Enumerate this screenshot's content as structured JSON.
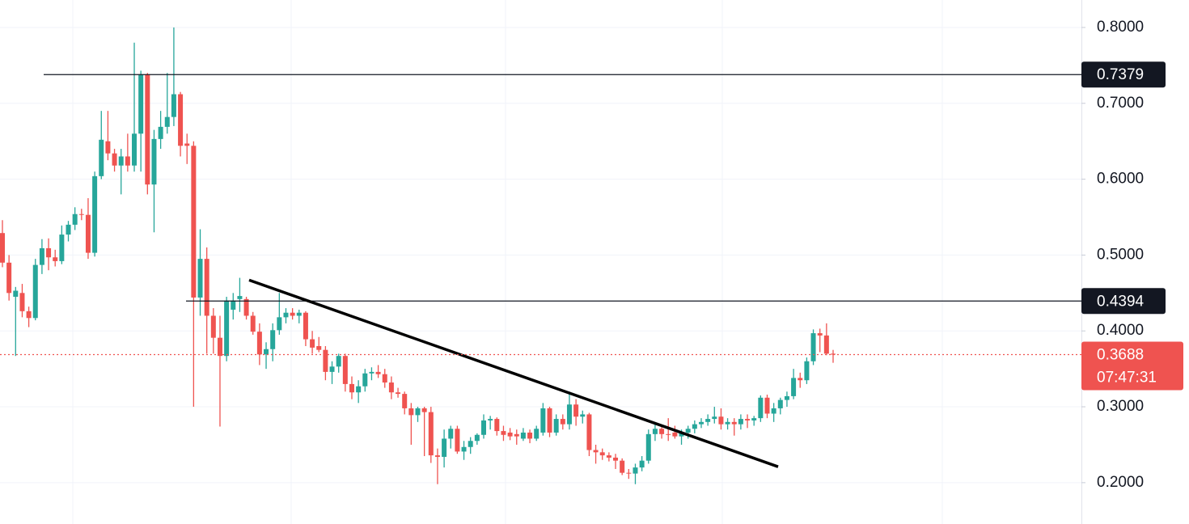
{
  "chart_data": {
    "type": "candlestick",
    "up_color": "#26a69a",
    "down_color": "#ef5350",
    "ylim": [
      0.1455,
      0.8362
    ],
    "yticks": [
      {
        "value": 0.2,
        "label": "0.2000"
      },
      {
        "value": 0.3,
        "label": "0.3000"
      },
      {
        "value": 0.4,
        "label": "0.4000"
      },
      {
        "value": 0.5,
        "label": "0.5000"
      },
      {
        "value": 0.6,
        "label": "0.6000"
      },
      {
        "value": 0.7,
        "label": "0.7000"
      },
      {
        "value": 0.8,
        "label": "0.8000"
      }
    ],
    "grid": true,
    "levels": [
      0.7379,
      0.4394
    ],
    "trendline": [
      0.467,
      0.221
    ],
    "last_price": 0.3688,
    "countdown": "07:47:31",
    "open": [
      0.529,
      0.49,
      0.445,
      0.45,
      0.426,
      0.417,
      0.487,
      0.509,
      0.497,
      0.492,
      0.527,
      0.54,
      0.554,
      0.553,
      0.503,
      0.604,
      0.65,
      0.634,
      0.618,
      0.63,
      0.618,
      0.66,
      0.738,
      0.593,
      0.653,
      0.669,
      0.682,
      0.712,
      0.647,
      0.644,
      0.444,
      0.495,
      0.42,
      0.391,
      0.367,
      0.428,
      0.442,
      0.442,
      0.42,
      0.399,
      0.369,
      0.376,
      0.401,
      0.418,
      0.424,
      0.42,
      0.424,
      0.389,
      0.38,
      0.375,
      0.346,
      0.353,
      0.367,
      0.33,
      0.319,
      0.327,
      0.344,
      0.346,
      0.343,
      0.332,
      0.319,
      0.317,
      0.298,
      0.289,
      0.298,
      0.293,
      0.236,
      0.234,
      0.258,
      0.271,
      0.241,
      0.247,
      0.255,
      0.263,
      0.282,
      0.284,
      0.268,
      0.266,
      0.264,
      0.258,
      0.266,
      0.258,
      0.266,
      0.298,
      0.266,
      0.284,
      0.277,
      0.303,
      0.287,
      0.29,
      0.243,
      0.24,
      0.236,
      0.233,
      0.229,
      0.213,
      0.212,
      0.22,
      0.229,
      0.264,
      0.271,
      0.264,
      0.266,
      0.261,
      0.266,
      0.271,
      0.277,
      0.28,
      0.284,
      0.287,
      0.277,
      0.28,
      0.277,
      0.284,
      0.282,
      0.285,
      0.312,
      0.291,
      0.298,
      0.309,
      0.314,
      0.338,
      0.335,
      0.36,
      0.397,
      0.394,
      0.37
    ],
    "high": [
      0.546,
      0.5,
      0.458,
      0.462,
      0.432,
      0.495,
      0.521,
      0.522,
      0.507,
      0.539,
      0.545,
      0.563,
      0.561,
      0.575,
      0.61,
      0.69,
      0.69,
      0.64,
      0.64,
      0.66,
      0.78,
      0.743,
      0.74,
      0.665,
      0.69,
      0.74,
      0.8,
      0.715,
      0.66,
      0.65,
      0.534,
      0.51,
      0.43,
      0.42,
      0.445,
      0.45,
      0.47,
      0.445,
      0.425,
      0.41,
      0.385,
      0.41,
      0.45,
      0.43,
      0.43,
      0.428,
      0.426,
      0.4,
      0.392,
      0.38,
      0.36,
      0.37,
      0.37,
      0.34,
      0.335,
      0.35,
      0.352,
      0.355,
      0.35,
      0.34,
      0.325,
      0.32,
      0.305,
      0.3,
      0.3,
      0.3,
      0.245,
      0.27,
      0.275,
      0.275,
      0.255,
      0.26,
      0.265,
      0.29,
      0.288,
      0.286,
      0.275,
      0.272,
      0.27,
      0.272,
      0.27,
      0.275,
      0.305,
      0.3,
      0.29,
      0.29,
      0.32,
      0.31,
      0.295,
      0.292,
      0.25,
      0.245,
      0.24,
      0.238,
      0.232,
      0.218,
      0.225,
      0.235,
      0.27,
      0.278,
      0.275,
      0.285,
      0.275,
      0.27,
      0.275,
      0.282,
      0.285,
      0.29,
      0.3,
      0.298,
      0.285,
      0.285,
      0.29,
      0.29,
      0.288,
      0.315,
      0.316,
      0.305,
      0.312,
      0.32,
      0.35,
      0.345,
      0.365,
      0.402,
      0.403,
      0.41,
      0.375
    ],
    "low": [
      0.484,
      0.44,
      0.367,
      0.418,
      0.405,
      0.414,
      0.475,
      0.48,
      0.485,
      0.488,
      0.518,
      0.533,
      0.546,
      0.495,
      0.498,
      0.6,
      0.625,
      0.61,
      0.58,
      0.61,
      0.61,
      0.61,
      0.58,
      0.53,
      0.64,
      0.66,
      0.67,
      0.63,
      0.62,
      0.3,
      0.42,
      0.37,
      0.37,
      0.274,
      0.36,
      0.415,
      0.425,
      0.415,
      0.395,
      0.355,
      0.35,
      0.36,
      0.395,
      0.41,
      0.415,
      0.41,
      0.38,
      0.37,
      0.372,
      0.335,
      0.33,
      0.345,
      0.32,
      0.31,
      0.305,
      0.32,
      0.335,
      0.338,
      0.325,
      0.31,
      0.312,
      0.29,
      0.25,
      0.28,
      0.235,
      0.226,
      0.198,
      0.22,
      0.245,
      0.238,
      0.23,
      0.238,
      0.25,
      0.258,
      0.27,
      0.262,
      0.255,
      0.256,
      0.25,
      0.255,
      0.252,
      0.255,
      0.262,
      0.26,
      0.262,
      0.27,
      0.27,
      0.275,
      0.278,
      0.235,
      0.225,
      0.23,
      0.228,
      0.218,
      0.21,
      0.205,
      0.198,
      0.215,
      0.225,
      0.255,
      0.258,
      0.255,
      0.258,
      0.25,
      0.258,
      0.265,
      0.272,
      0.275,
      0.278,
      0.27,
      0.27,
      0.262,
      0.27,
      0.272,
      0.275,
      0.28,
      0.285,
      0.28,
      0.29,
      0.3,
      0.31,
      0.325,
      0.33,
      0.355,
      0.372,
      0.368,
      0.358
    ],
    "close": [
      0.49,
      0.45,
      0.453,
      0.426,
      0.417,
      0.487,
      0.509,
      0.497,
      0.492,
      0.527,
      0.54,
      0.554,
      0.553,
      0.503,
      0.604,
      0.652,
      0.634,
      0.618,
      0.63,
      0.618,
      0.66,
      0.738,
      0.593,
      0.653,
      0.669,
      0.682,
      0.712,
      0.644,
      0.644,
      0.444,
      0.495,
      0.42,
      0.391,
      0.367,
      0.44,
      0.44,
      0.446,
      0.42,
      0.399,
      0.369,
      0.376,
      0.401,
      0.418,
      0.424,
      0.42,
      0.424,
      0.389,
      0.378,
      0.375,
      0.346,
      0.353,
      0.367,
      0.33,
      0.319,
      0.327,
      0.344,
      0.346,
      0.343,
      0.332,
      0.319,
      0.317,
      0.298,
      0.289,
      0.298,
      0.293,
      0.236,
      0.234,
      0.258,
      0.271,
      0.241,
      0.247,
      0.255,
      0.263,
      0.282,
      0.284,
      0.268,
      0.263,
      0.261,
      0.261,
      0.266,
      0.258,
      0.271,
      0.298,
      0.266,
      0.284,
      0.277,
      0.303,
      0.287,
      0.29,
      0.243,
      0.24,
      0.236,
      0.233,
      0.229,
      0.213,
      0.212,
      0.22,
      0.229,
      0.264,
      0.271,
      0.264,
      0.263,
      0.261,
      0.266,
      0.271,
      0.277,
      0.28,
      0.284,
      0.287,
      0.277,
      0.28,
      0.277,
      0.284,
      0.282,
      0.285,
      0.312,
      0.291,
      0.298,
      0.309,
      0.314,
      0.338,
      0.335,
      0.36,
      0.397,
      0.394,
      0.37,
      0.3688
    ]
  }
}
